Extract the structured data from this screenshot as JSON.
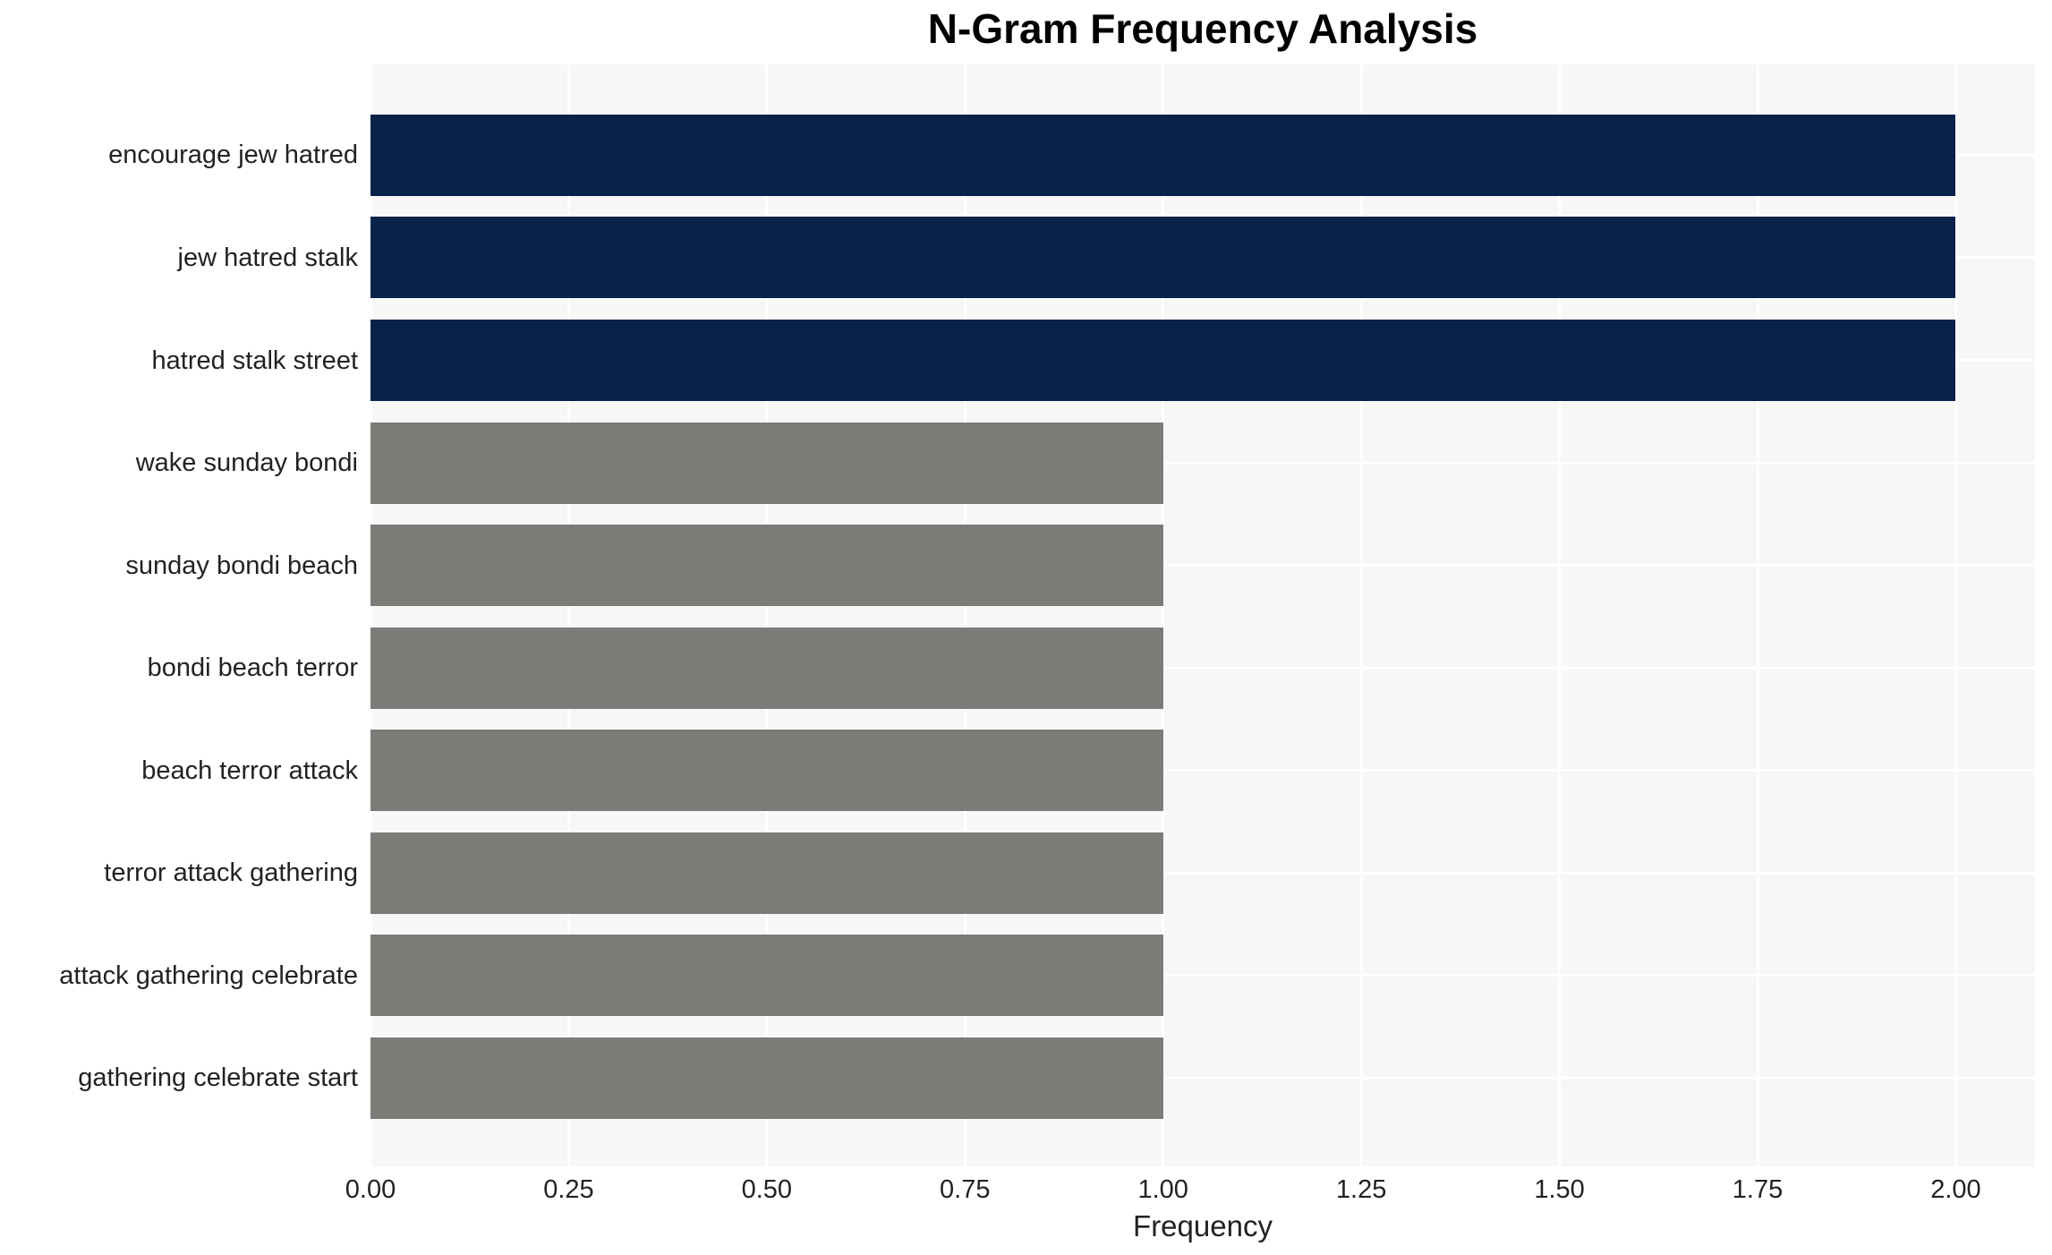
{
  "chart_data": {
    "type": "bar",
    "orientation": "horizontal",
    "title": "N-Gram Frequency Analysis",
    "xlabel": "Frequency",
    "ylabel": "",
    "categories": [
      "encourage jew hatred",
      "jew hatred stalk",
      "hatred stalk street",
      "wake sunday bondi",
      "sunday bondi beach",
      "bondi beach terror",
      "beach terror attack",
      "terror attack gathering",
      "attack gathering celebrate",
      "gathering celebrate start"
    ],
    "values": [
      2,
      2,
      2,
      1,
      1,
      1,
      1,
      1,
      1,
      1
    ],
    "bar_color_keys": [
      "freq2",
      "freq2",
      "freq2",
      "freq1",
      "freq1",
      "freq1",
      "freq1",
      "freq1",
      "freq1",
      "freq1"
    ],
    "colors": {
      "freq2": "#08224a",
      "freq1": "#7b7b78",
      "plot_background": "#f7f7f7",
      "gridline": "#ffffff",
      "axis_text": "#222222",
      "title_text": "#000000"
    },
    "xlim": [
      0,
      2.1
    ],
    "xticks": [
      0,
      0.25,
      0.5,
      0.75,
      1.0,
      1.25,
      1.5,
      1.75,
      2.0
    ],
    "xtick_labels": [
      "0.00",
      "0.25",
      "0.50",
      "0.75",
      "1.00",
      "1.25",
      "1.50",
      "1.75",
      "2.00"
    ],
    "grid": true,
    "legend": null
  }
}
